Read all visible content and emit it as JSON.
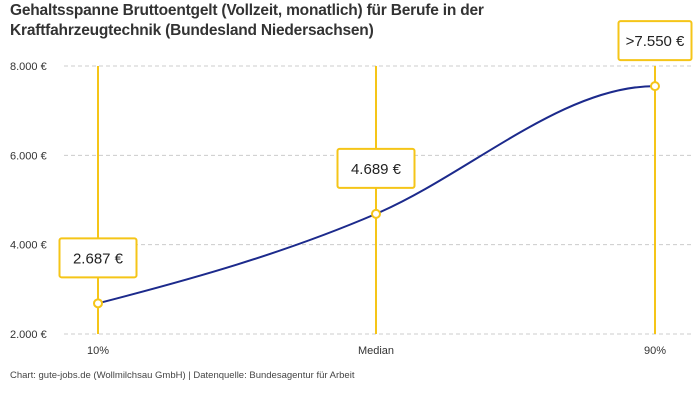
{
  "title": "Gehaltsspanne Bruttoentgelt (Vollzeit, monatlich) für Berufe in der Kraftfahrzeugtechnik (Bundesland Niedersachsen)",
  "footer": "Chart: gute-jobs.de (Wollmilchsau GmbH) | Datenquelle: Bundesagentur für Arbeit",
  "colors": {
    "line": "#1c2a8c",
    "accent": "#f5c518",
    "grid": "#cccccc"
  },
  "chart_data": {
    "type": "line",
    "categories": [
      "10%",
      "Median",
      "90%"
    ],
    "values": [
      2687,
      4689,
      7550
    ],
    "data_labels": [
      "2.687 €",
      "4.689 €",
      ">7.550 €"
    ],
    "ylim": [
      2000,
      8000
    ],
    "yticks": [
      2000,
      4000,
      6000,
      8000
    ],
    "ytick_labels": [
      "2.000 €",
      "4.000 €",
      "6.000 €",
      "8.000 €"
    ],
    "grid": true
  }
}
